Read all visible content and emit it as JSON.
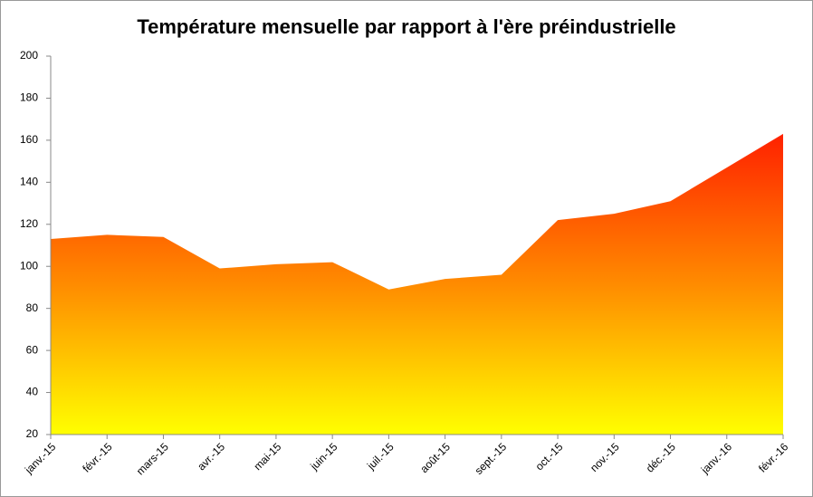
{
  "chart_data": {
    "type": "area",
    "title": "Température mensuelle par rapport à l'ère préindustrielle",
    "categories": [
      "janv.-15",
      "févr.-15",
      "mars-15",
      "avr.-15",
      "mai-15",
      "juin-15",
      "juil.-15",
      "août-15",
      "sept.-15",
      "oct.-15",
      "nov.-15",
      "déc.-15",
      "janv.-16",
      "févr.-16"
    ],
    "values": [
      113,
      115,
      114,
      99,
      101,
      102,
      89,
      94,
      96,
      122,
      125,
      131,
      147,
      163
    ],
    "gradient": [
      "#ff2200",
      "#ff8c00",
      "#ffff00"
    ],
    "ylim": [
      20,
      200
    ],
    "yticks": [
      20,
      40,
      60,
      80,
      100,
      120,
      140,
      160,
      180,
      200
    ],
    "grid": false
  }
}
